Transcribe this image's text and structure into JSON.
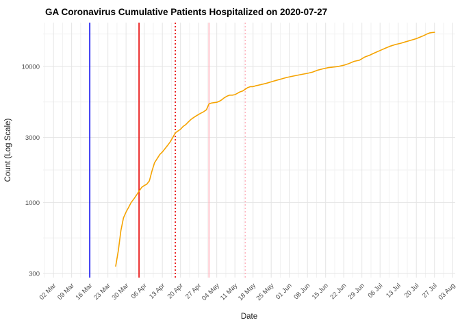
{
  "title": "GA Coronavirus Cumulative Patients Hospitalized on 2020-07-27",
  "chart_data": {
    "type": "line",
    "title": "GA Coronavirus Cumulative Patients Hospitalized on 2020-07-27",
    "xlabel": "Date",
    "ylabel": "Count (Log Scale)",
    "y_scale": "log10",
    "grid": {
      "major_color": "#e4e4e4",
      "minor_color": "#f1f1f1",
      "background": "#ffffff"
    },
    "x_domain": [
      "2020-02-27",
      "2020-08-04"
    ],
    "y_domain": [
      280,
      21000
    ],
    "y_ticks": [
      {
        "label": "300",
        "value": 300
      },
      {
        "label": "1000",
        "value": 1000
      },
      {
        "label": "3000",
        "value": 3000
      },
      {
        "label": "10000",
        "value": 10000
      }
    ],
    "y_minor_gridlines": [
      548,
      1732,
      5477,
      17321
    ],
    "x_ticks": [
      {
        "label": "02 Mar",
        "date": "2020-03-02"
      },
      {
        "label": "09 Mar",
        "date": "2020-03-09"
      },
      {
        "label": "16 Mar",
        "date": "2020-03-16"
      },
      {
        "label": "23 Mar",
        "date": "2020-03-23"
      },
      {
        "label": "30 Mar",
        "date": "2020-03-30"
      },
      {
        "label": "06 Apr",
        "date": "2020-04-06"
      },
      {
        "label": "13 Apr",
        "date": "2020-04-13"
      },
      {
        "label": "20 Apr",
        "date": "2020-04-20"
      },
      {
        "label": "27 Apr",
        "date": "2020-04-27"
      },
      {
        "label": "04 May",
        "date": "2020-05-04"
      },
      {
        "label": "11 May",
        "date": "2020-05-11"
      },
      {
        "label": "18 May",
        "date": "2020-05-18"
      },
      {
        "label": "25 May",
        "date": "2020-05-25"
      },
      {
        "label": "01 Jun",
        "date": "2020-06-01"
      },
      {
        "label": "08 Jun",
        "date": "2020-06-08"
      },
      {
        "label": "15 Jun",
        "date": "2020-06-15"
      },
      {
        "label": "22 Jun",
        "date": "2020-06-22"
      },
      {
        "label": "29 Jun",
        "date": "2020-06-29"
      },
      {
        "label": "06 Jul",
        "date": "2020-07-06"
      },
      {
        "label": "13 Jul",
        "date": "2020-07-13"
      },
      {
        "label": "20 Jul",
        "date": "2020-07-20"
      },
      {
        "label": "27 Jul",
        "date": "2020-07-27"
      },
      {
        "label": "03 Aug",
        "date": "2020-08-03"
      }
    ],
    "vlines": [
      {
        "name": "blue-event-line",
        "date": "2020-03-16",
        "color": "#0000ee",
        "style": "solid"
      },
      {
        "name": "red-event-line",
        "date": "2020-04-04",
        "color": "#e80000",
        "style": "solid"
      },
      {
        "name": "red-event-line-dotted",
        "date": "2020-04-18",
        "color": "#e80000",
        "style": "dotted"
      },
      {
        "name": "pink-event-line",
        "date": "2020-05-01",
        "color": "#ffb6c1",
        "style": "solid"
      },
      {
        "name": "pink-event-line-dotted",
        "date": "2020-05-15",
        "color": "#ffb6c1",
        "style": "dotted"
      }
    ],
    "series": [
      {
        "name": "Cumulative patients hospitalized",
        "color": "#f5a300",
        "points": [
          [
            "2020-03-26",
            340
          ],
          [
            "2020-03-27",
            440
          ],
          [
            "2020-03-28",
            620
          ],
          [
            "2020-03-29",
            770
          ],
          [
            "2020-03-30",
            850
          ],
          [
            "2020-03-31",
            920
          ],
          [
            "2020-04-01",
            1000
          ],
          [
            "2020-04-02",
            1060
          ],
          [
            "2020-04-03",
            1130
          ],
          [
            "2020-04-04",
            1210
          ],
          [
            "2020-04-05",
            1290
          ],
          [
            "2020-04-06",
            1330
          ],
          [
            "2020-04-07",
            1360
          ],
          [
            "2020-04-08",
            1440
          ],
          [
            "2020-04-09",
            1700
          ],
          [
            "2020-04-10",
            1960
          ],
          [
            "2020-04-11",
            2100
          ],
          [
            "2020-04-12",
            2250
          ],
          [
            "2020-04-13",
            2350
          ],
          [
            "2020-04-14",
            2480
          ],
          [
            "2020-04-15",
            2620
          ],
          [
            "2020-04-16",
            2780
          ],
          [
            "2020-04-17",
            3000
          ],
          [
            "2020-04-18",
            3250
          ],
          [
            "2020-04-19",
            3350
          ],
          [
            "2020-04-20",
            3450
          ],
          [
            "2020-04-21",
            3620
          ],
          [
            "2020-04-22",
            3730
          ],
          [
            "2020-04-23",
            3900
          ],
          [
            "2020-04-24",
            4070
          ],
          [
            "2020-04-25",
            4200
          ],
          [
            "2020-04-26",
            4320
          ],
          [
            "2020-04-27",
            4440
          ],
          [
            "2020-04-28",
            4550
          ],
          [
            "2020-04-29",
            4650
          ],
          [
            "2020-04-30",
            4800
          ],
          [
            "2020-05-01",
            5300
          ],
          [
            "2020-05-02",
            5380
          ],
          [
            "2020-05-03",
            5420
          ],
          [
            "2020-05-04",
            5450
          ],
          [
            "2020-05-05",
            5550
          ],
          [
            "2020-05-06",
            5700
          ],
          [
            "2020-05-07",
            5900
          ],
          [
            "2020-05-08",
            6050
          ],
          [
            "2020-05-09",
            6150
          ],
          [
            "2020-05-10",
            6150
          ],
          [
            "2020-05-11",
            6200
          ],
          [
            "2020-05-12",
            6350
          ],
          [
            "2020-05-13",
            6500
          ],
          [
            "2020-05-14",
            6600
          ],
          [
            "2020-05-15",
            6800
          ],
          [
            "2020-05-16",
            7000
          ],
          [
            "2020-05-17",
            7100
          ],
          [
            "2020-05-18",
            7100
          ],
          [
            "2020-05-19",
            7200
          ],
          [
            "2020-05-21",
            7350
          ],
          [
            "2020-05-23",
            7500
          ],
          [
            "2020-05-25",
            7700
          ],
          [
            "2020-05-27",
            7900
          ],
          [
            "2020-05-29",
            8100
          ],
          [
            "2020-05-31",
            8300
          ],
          [
            "2020-06-02",
            8450
          ],
          [
            "2020-06-04",
            8600
          ],
          [
            "2020-06-06",
            8750
          ],
          [
            "2020-06-08",
            8900
          ],
          [
            "2020-06-10",
            9100
          ],
          [
            "2020-06-12",
            9400
          ],
          [
            "2020-06-14",
            9600
          ],
          [
            "2020-06-16",
            9800
          ],
          [
            "2020-06-18",
            9900
          ],
          [
            "2020-06-20",
            10000
          ],
          [
            "2020-06-22",
            10200
          ],
          [
            "2020-06-24",
            10500
          ],
          [
            "2020-06-26",
            10900
          ],
          [
            "2020-06-28",
            11100
          ],
          [
            "2020-06-30",
            11700
          ],
          [
            "2020-07-02",
            12100
          ],
          [
            "2020-07-04",
            12600
          ],
          [
            "2020-07-06",
            13100
          ],
          [
            "2020-07-08",
            13600
          ],
          [
            "2020-07-10",
            14100
          ],
          [
            "2020-07-12",
            14500
          ],
          [
            "2020-07-14",
            14800
          ],
          [
            "2020-07-16",
            15200
          ],
          [
            "2020-07-18",
            15600
          ],
          [
            "2020-07-20",
            16000
          ],
          [
            "2020-07-22",
            16600
          ],
          [
            "2020-07-23",
            16900
          ],
          [
            "2020-07-24",
            17300
          ],
          [
            "2020-07-25",
            17600
          ],
          [
            "2020-07-26",
            17750
          ],
          [
            "2020-07-27",
            17800
          ]
        ]
      }
    ]
  }
}
